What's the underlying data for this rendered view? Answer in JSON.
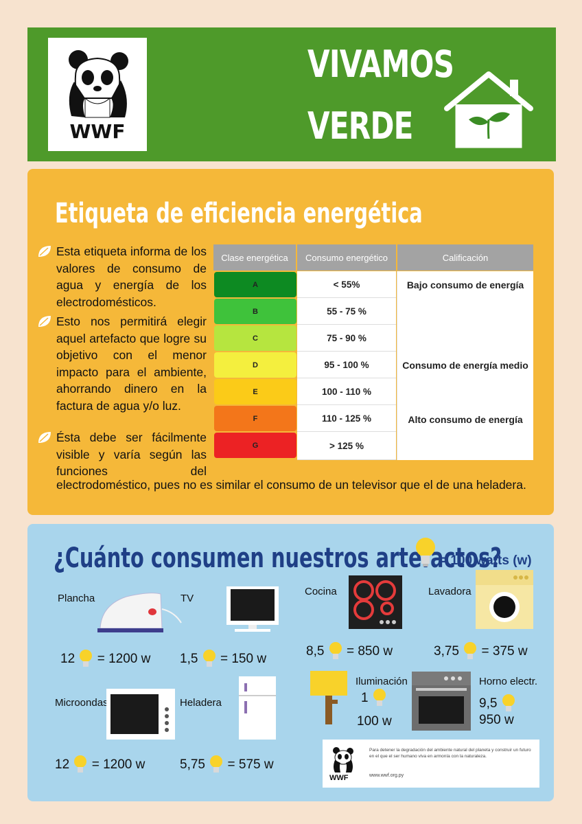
{
  "header": {
    "logo_text": "WWF",
    "title_line1": "VIVAMOS",
    "title_line2": "VERDE"
  },
  "efficiency": {
    "title": "Etiqueta de eficiencia energética",
    "para1": "Esta etiqueta informa de los valores de consumo de agua y energía de los electrodomésticos.",
    "para2": "Esto nos permitirá elegir aquel artefacto que logre su objetivo con el menor impacto para el ambiente, ahorrando dinero en la factura de agua y/o luz.",
    "para3_wrapped": "Ésta debe ser fácilmente visible y varía según las funciones del",
    "para3_full": "electrodoméstico, pues no es similar el consumo de un televisor que el de una heladera.",
    "table": {
      "headers": [
        "Clase energética",
        "Consumo energético",
        "Calificación"
      ],
      "rows": [
        {
          "cls": "A",
          "consumo": "< 55%",
          "color": "#0d8a22"
        },
        {
          "cls": "B",
          "consumo": "55 - 75 %",
          "color": "#3fc23b"
        },
        {
          "cls": "C",
          "consumo": "75 - 90 %",
          "color": "#b6e53f"
        },
        {
          "cls": "D",
          "consumo": "95 - 100 %",
          "color": "#f4ef3e"
        },
        {
          "cls": "E",
          "consumo": "100 - 110 %",
          "color": "#fbcb18"
        },
        {
          "cls": "F",
          "consumo": "110 - 125 %",
          "color": "#f3761a"
        },
        {
          "cls": "G",
          "consumo": "> 125 %",
          "color": "#ec2224"
        }
      ],
      "calificaciones": [
        "Bajo consumo de energía",
        "Consumo de energía medio",
        "Alto consumo de energía"
      ]
    }
  },
  "consumption": {
    "title": "¿Cuánto consumen nuestros artefactos?",
    "legend": "= 100 watts (w)",
    "items": {
      "plancha": {
        "label": "Plancha",
        "count": "12",
        "watts": "= 1200 w"
      },
      "tv": {
        "label": "TV",
        "count": "1,5",
        "watts": "= 150 w"
      },
      "cocina": {
        "label": "Cocina",
        "count": "8,5",
        "watts": "= 850 w"
      },
      "lavadora": {
        "label": "Lavadora",
        "count": "3,75",
        "watts": "= 375 w"
      },
      "microondas": {
        "label": "Microondas",
        "count": "12",
        "watts": "= 1200 w"
      },
      "heladera": {
        "label": "Heladera",
        "count": "5,75",
        "watts": "= 575 w"
      },
      "iluminacion": {
        "label": "Iluminación",
        "count": "1",
        "watts": "100 w"
      },
      "horno": {
        "label": "Horno electr.",
        "count": "9,5",
        "watts": "950 w"
      }
    }
  },
  "footer": {
    "logo_text": "WWF",
    "text": "Para detener la degradación del ambiente natural del planeta y construir un futuro en el que el ser humano viva en armonía con la naturaleza.",
    "url": "www.wwf.org.py"
  },
  "colors": {
    "header_green": "#4e9a2a",
    "orange_panel": "#f5b839",
    "blue_panel": "#a9d5ec",
    "title_blue": "#1f3f86"
  }
}
